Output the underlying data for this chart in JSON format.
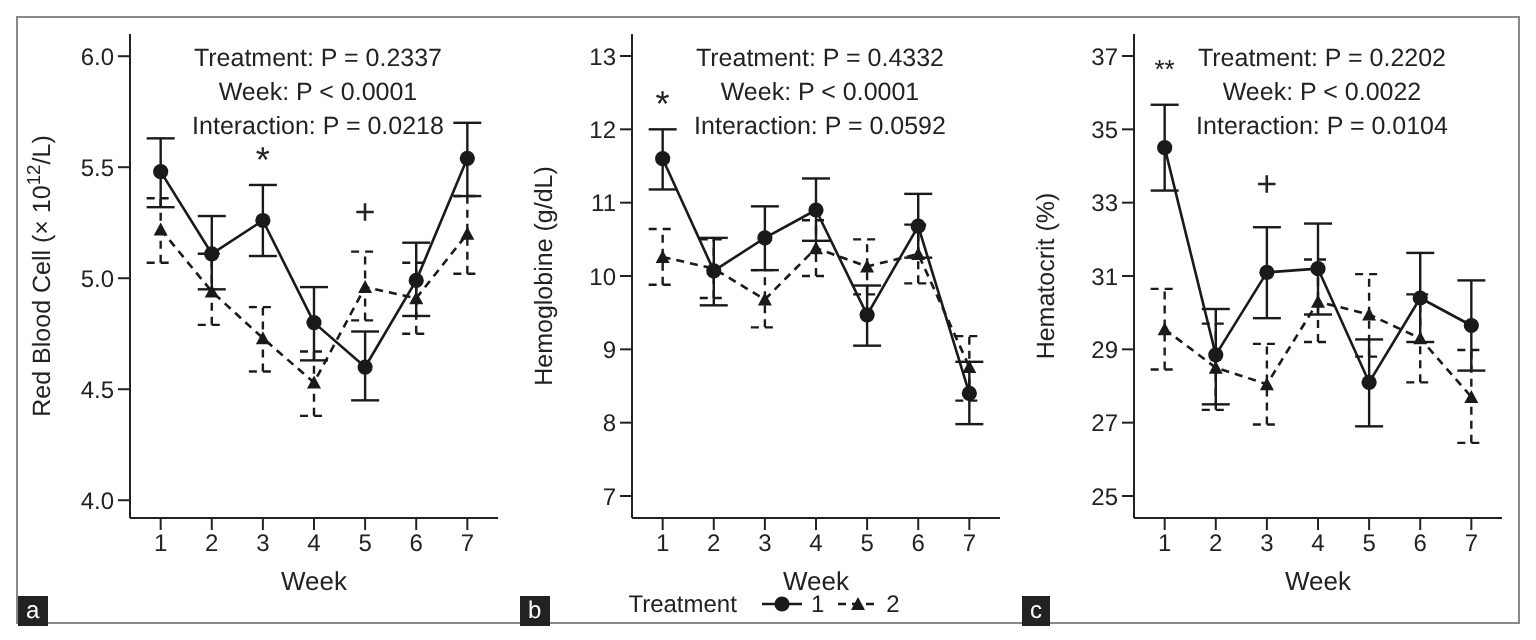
{
  "chart_data": [
    {
      "type": "line",
      "categories": [
        "1",
        "2",
        "3",
        "4",
        "5",
        "6",
        "7"
      ],
      "xlabel": "Week",
      "ylabel": "Red Blood Cell (× 10$^{12}$/L)",
      "ylim": [
        3.92,
        6.1
      ],
      "yticks": [
        {
          "value": 4,
          "label": "4.0"
        },
        {
          "value": 4.5,
          "label": "4.5"
        },
        {
          "value": 5,
          "label": "5.0"
        },
        {
          "value": 5.5,
          "label": "5.5"
        },
        {
          "value": 6,
          "label": "6.0"
        }
      ],
      "legend": false,
      "series": [
        {
          "name": "1",
          "color": "#1a1a1a",
          "marker": "circle",
          "line_style": "solid",
          "values": [
            5.48,
            5.11,
            5.26,
            4.8,
            4.6,
            4.99,
            5.54
          ],
          "errors": [
            [
              5.32,
              5.63
            ],
            [
              4.95,
              5.28
            ],
            [
              5.1,
              5.42
            ],
            [
              4.63,
              4.96
            ],
            [
              4.45,
              4.76
            ],
            [
              4.83,
              5.16
            ],
            [
              5.37,
              5.7
            ]
          ]
        },
        {
          "name": "2",
          "color": "#1a1a1a",
          "marker": "triangle",
          "line_style": "dashed",
          "values": [
            5.22,
            4.94,
            4.73,
            4.53,
            4.96,
            4.91,
            5.2
          ],
          "errors": [
            [
              5.07,
              5.36
            ],
            [
              4.79,
              5.11
            ],
            [
              4.58,
              4.87
            ],
            [
              4.38,
              4.67
            ],
            [
              4.81,
              5.12
            ],
            [
              4.75,
              5.07
            ],
            [
              5.02,
              5.37
            ]
          ]
        }
      ],
      "annotations": [
        "Treatment: P = 0.2337",
        "Week: P < 0.0001",
        "Interaction: P = 0.0218",
        "*",
        "+",
        "a"
      ]
    },
    {
      "type": "line",
      "categories": [
        "1",
        "2",
        "3",
        "4",
        "5",
        "6",
        "7"
      ],
      "xlabel": "Week",
      "ylabel": "Hemoglobine (g/dL)",
      "ylim": [
        6.7,
        13.3
      ],
      "yticks": [
        7,
        8,
        9,
        10,
        11,
        12,
        13
      ],
      "legend": "bottom",
      "legend_title": "Treatment",
      "series": [
        {
          "name": "1",
          "color": "#1a1a1a",
          "marker": "circle",
          "line_style": "solid",
          "values": [
            11.6,
            10.07,
            10.52,
            10.9,
            9.47,
            10.68,
            8.4
          ],
          "errors": [
            [
              11.18,
              12.0
            ],
            [
              9.6,
              10.52
            ],
            [
              10.08,
              10.95
            ],
            [
              10.48,
              11.33
            ],
            [
              9.05,
              9.87
            ],
            [
              10.25,
              11.12
            ],
            [
              7.98,
              8.83
            ]
          ]
        },
        {
          "name": "2",
          "color": "#1a1a1a",
          "marker": "triangle",
          "line_style": "dashed",
          "values": [
            10.26,
            10.1,
            9.68,
            10.38,
            10.13,
            10.3,
            8.76
          ],
          "errors": [
            [
              9.88,
              10.64
            ],
            [
              9.7,
              10.5
            ],
            [
              9.3,
              10.08
            ],
            [
              10.0,
              10.76
            ],
            [
              9.75,
              10.5
            ],
            [
              9.9,
              10.7
            ],
            [
              8.3,
              9.18
            ]
          ]
        }
      ],
      "annotations": [
        "Treatment: P = 0.4332",
        "Week: P < 0.0001",
        "Interaction: P = 0.0592",
        "*",
        "b"
      ]
    },
    {
      "type": "line",
      "categories": [
        "1",
        "2",
        "3",
        "4",
        "5",
        "6",
        "7"
      ],
      "xlabel": "Week",
      "ylabel": "Hematocrit (%)",
      "ylim": [
        24.4,
        37.6
      ],
      "yticks": [
        25,
        27,
        29,
        31,
        33,
        35,
        37
      ],
      "legend": false,
      "series": [
        {
          "name": "1",
          "color": "#1a1a1a",
          "marker": "circle",
          "line_style": "solid",
          "values": [
            34.5,
            28.85,
            31.1,
            31.2,
            28.1,
            30.4,
            29.65
          ],
          "errors": [
            [
              33.33,
              35.67
            ],
            [
              27.5,
              30.1
            ],
            [
              29.85,
              32.33
            ],
            [
              29.95,
              32.43
            ],
            [
              26.9,
              29.27
            ],
            [
              29.2,
              31.63
            ],
            [
              28.42,
              30.88
            ]
          ]
        },
        {
          "name": "2",
          "color": "#1a1a1a",
          "marker": "triangle",
          "line_style": "dashed",
          "values": [
            29.55,
            28.5,
            28.05,
            30.3,
            29.95,
            29.3,
            27.7
          ],
          "errors": [
            [
              28.45,
              30.65
            ],
            [
              27.35,
              29.7
            ],
            [
              26.95,
              29.15
            ],
            [
              29.2,
              31.45
            ],
            [
              28.8,
              31.05
            ],
            [
              28.1,
              30.5
            ],
            [
              26.45,
              28.98
            ]
          ]
        }
      ],
      "annotations": [
        "Treatment: P = 0.2202",
        "Week: P < 0.0022",
        "Interaction: P = 0.0104",
        "**",
        "+",
        "c"
      ]
    }
  ]
}
